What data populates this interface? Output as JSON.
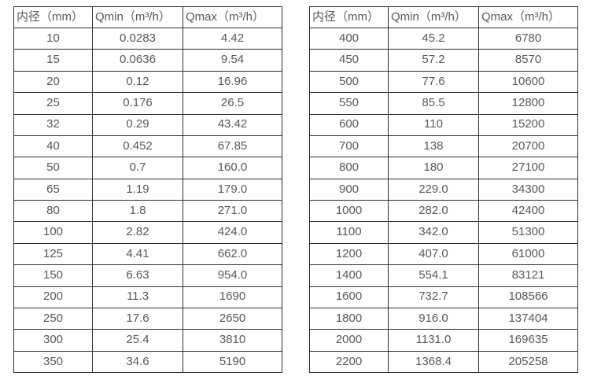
{
  "colors": {
    "background": "#ffffff",
    "text": "#585858",
    "border": "#2e2e2e"
  },
  "tables": [
    {
      "name": "small-diameter-flow-table",
      "headers": [
        "内径（mm）",
        "Qmin（m³/h）",
        "Qmax（m³/h）"
      ],
      "rows": [
        [
          "10",
          "0.0283",
          "4.42"
        ],
        [
          "15",
          "0.0636",
          "9.54"
        ],
        [
          "20",
          "0.12",
          "16.96"
        ],
        [
          "25",
          "0.176",
          "26.5"
        ],
        [
          "32",
          "0.29",
          "43.42"
        ],
        [
          "40",
          "0.452",
          "67.85"
        ],
        [
          "50",
          "0.7",
          "160.0"
        ],
        [
          "65",
          "1.19",
          "179.0"
        ],
        [
          "80",
          "1.8",
          "271.0"
        ],
        [
          "100",
          "2.82",
          "424.0"
        ],
        [
          "125",
          "4.41",
          "662.0"
        ],
        [
          "150",
          "6.63",
          "954.0"
        ],
        [
          "200",
          "11.3",
          "1690"
        ],
        [
          "250",
          "17.6",
          "2650"
        ],
        [
          "300",
          "25.4",
          "3810"
        ],
        [
          "350",
          "34.6",
          "5190"
        ]
      ]
    },
    {
      "name": "large-diameter-flow-table",
      "headers": [
        "内径（mm）",
        "Qmin（m³/h）",
        "Qmax（m³/h）"
      ],
      "rows": [
        [
          "400",
          "45.2",
          "6780"
        ],
        [
          "450",
          "57.2",
          "8570"
        ],
        [
          "500",
          "77.6",
          "10600"
        ],
        [
          "550",
          "85.5",
          "12800"
        ],
        [
          "600",
          "110",
          "15200"
        ],
        [
          "700",
          "138",
          "20700"
        ],
        [
          "800",
          "180",
          "27100"
        ],
        [
          "900",
          "229.0",
          "34300"
        ],
        [
          "1000",
          "282.0",
          "42400"
        ],
        [
          "1100",
          "342.0",
          "51300"
        ],
        [
          "1200",
          "407.0",
          "61000"
        ],
        [
          "1400",
          "554.1",
          "83121"
        ],
        [
          "1600",
          "732.7",
          "108566"
        ],
        [
          "1800",
          "916.0",
          "137404"
        ],
        [
          "2000",
          "1131.0",
          "169635"
        ],
        [
          "2200",
          "1368.4",
          "205258"
        ]
      ]
    }
  ]
}
